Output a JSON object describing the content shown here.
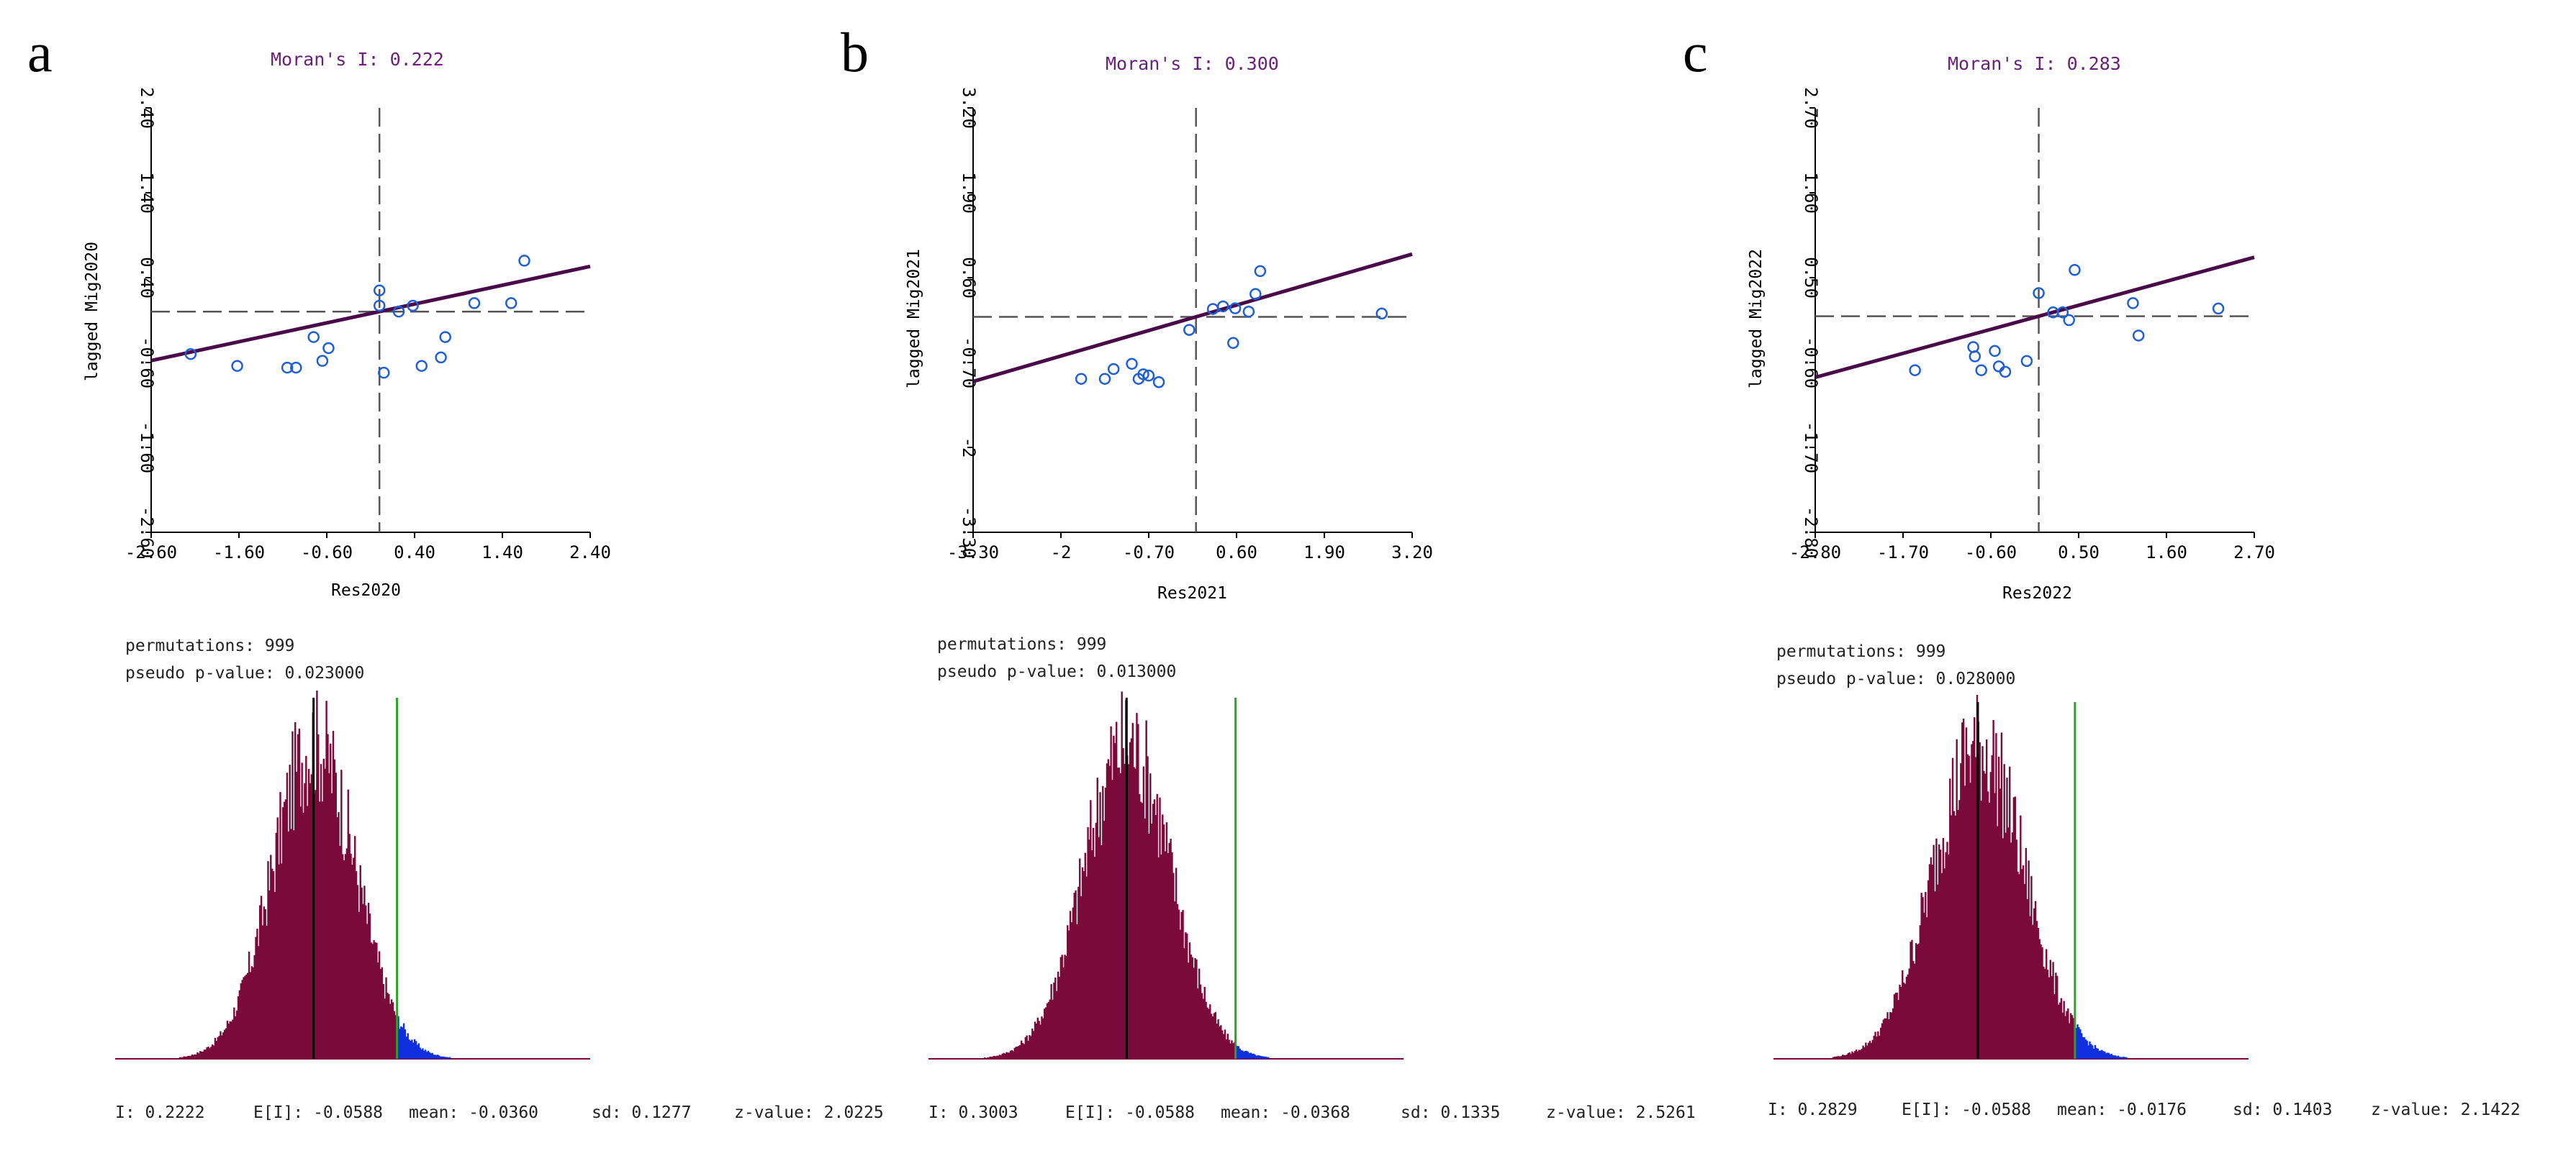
{
  "panels": [
    {
      "letter": "a",
      "moran_title": "Moran's I: 0.222",
      "xlabel": "Res2020",
      "ylabel": "lagged Mig2020",
      "permutations": "permutations: 999",
      "pvalue": "pseudo p-value: 0.023000",
      "stats": {
        "i": "I: 0.2222",
        "ei": "E[I]: -0.0588",
        "mean": "mean: -0.0360",
        "sd": "sd: 0.1277",
        "z": "z-value: 2.0225"
      }
    },
    {
      "letter": "b",
      "moran_title": "Moran's I: 0.300",
      "xlabel": "Res2021",
      "ylabel": "lagged Mig2021",
      "permutations": "permutations: 999",
      "pvalue": "pseudo p-value: 0.013000",
      "stats": {
        "i": "I: 0.3003",
        "ei": "E[I]: -0.0588",
        "mean": "mean: -0.0368",
        "sd": "sd: 0.1335",
        "z": "z-value: 2.5261"
      }
    },
    {
      "letter": "c",
      "moran_title": "Moran's I: 0.283",
      "xlabel": "Res2022",
      "ylabel": "lagged Mig2022",
      "permutations": "permutations: 999",
      "pvalue": "pseudo p-value: 0.028000",
      "stats": {
        "i": "I: 0.2829",
        "ei": "E[I]: -0.0588",
        "mean": "mean: -0.0176",
        "sd": "sd: 0.1403",
        "z": "z-value: 2.1422"
      }
    }
  ],
  "colors": {
    "scatter_point": "#1f5fd6",
    "regression_line": "#4a0a4a",
    "histogram_bar": "#7a0a3a",
    "tail_bar": "#1030e0",
    "observed_line": "#2ca02c",
    "mean_line": "#000000",
    "title": "#6a1f7a"
  },
  "chart_data": [
    {
      "type": "scatter",
      "title": "Moran's I: 0.222",
      "xlabel": "Res2020",
      "ylabel": "lagged Mig2020",
      "xlim": [
        -2.6,
        2.4
      ],
      "ylim": [
        -2.6,
        2.4
      ],
      "xticks": [
        "-2.60",
        "-1.60",
        "-0.60",
        "0.40",
        "1.40",
        "2.40"
      ],
      "yticks": [
        "-2.60",
        "-1.60",
        "-0.60",
        "0.40",
        "1.40",
        "2.40"
      ],
      "moran_i": 0.222,
      "x": [
        -2.15,
        -1.62,
        -1.05,
        -0.95,
        -0.75,
        -0.65,
        -0.58,
        0.0,
        0.0,
        0.05,
        0.22,
        0.38,
        0.48,
        0.7,
        0.75,
        1.08,
        1.5,
        1.65
      ],
      "y": [
        -0.5,
        -0.64,
        -0.66,
        -0.66,
        -0.3,
        -0.58,
        -0.43,
        0.07,
        0.25,
        -0.72,
        0.0,
        0.07,
        -0.64,
        -0.54,
        -0.3,
        0.1,
        0.1,
        0.6
      ],
      "histogram": {
        "permutations": 999,
        "pseudo_p_value": 0.023,
        "I": 0.2222,
        "E_I": -0.0588,
        "mean": -0.036,
        "sd": 0.1277,
        "z_value": 2.0225
      }
    },
    {
      "type": "scatter",
      "title": "Moran's I: 0.300",
      "xlabel": "Res2021",
      "ylabel": "lagged Mig2021",
      "xlim": [
        -3.3,
        3.2
      ],
      "ylim": [
        -3.3,
        3.2
      ],
      "xticks": [
        "-3.30",
        "-2",
        "-0.70",
        "0.60",
        "1.90",
        "3.20"
      ],
      "yticks": [
        "-3.30",
        "-2",
        "-0.70",
        "0.60",
        "1.90",
        "3.20"
      ],
      "moran_i": 0.3,
      "x": [
        -1.7,
        -1.35,
        -1.22,
        -0.95,
        -0.85,
        -0.78,
        -0.7,
        -0.55,
        -0.1,
        0.25,
        0.4,
        0.55,
        0.58,
        0.78,
        0.88,
        0.95,
        2.75
      ],
      "y": [
        -0.95,
        -0.95,
        -0.8,
        -0.72,
        -0.95,
        -0.88,
        -0.9,
        -1.0,
        -0.2,
        0.12,
        0.16,
        -0.4,
        0.13,
        0.08,
        0.35,
        0.7,
        0.05
      ],
      "histogram": {
        "permutations": 999,
        "pseudo_p_value": 0.013,
        "I": 0.3003,
        "E_I": -0.0588,
        "mean": -0.0368,
        "sd": 0.1335,
        "z_value": 2.5261
      }
    },
    {
      "type": "scatter",
      "title": "Moran's I: 0.283",
      "xlabel": "Res2022",
      "ylabel": "lagged Mig2022",
      "xlim": [
        -2.8,
        2.7
      ],
      "ylim": [
        -2.8,
        2.7
      ],
      "xticks": [
        "-2.80",
        "-1.70",
        "-0.60",
        "0.50",
        "1.60",
        "2.70"
      ],
      "yticks": [
        "-2.80",
        "-1.70",
        "-0.60",
        "0.50",
        "1.60",
        "2.70"
      ],
      "moran_i": 0.283,
      "x": [
        -1.55,
        -0.82,
        -0.8,
        -0.72,
        -0.55,
        -0.5,
        -0.42,
        -0.15,
        0.0,
        0.18,
        0.3,
        0.38,
        0.45,
        1.18,
        1.25,
        2.25
      ],
      "y": [
        -0.7,
        -0.4,
        -0.52,
        -0.7,
        -0.45,
        -0.65,
        -0.72,
        -0.58,
        0.3,
        0.05,
        0.05,
        -0.05,
        0.6,
        0.17,
        -0.25,
        0.1
      ],
      "histogram": {
        "permutations": 999,
        "pseudo_p_value": 0.028,
        "I": 0.2829,
        "E_I": -0.0588,
        "mean": -0.0176,
        "sd": 0.1403,
        "z_value": 2.1422
      }
    }
  ]
}
